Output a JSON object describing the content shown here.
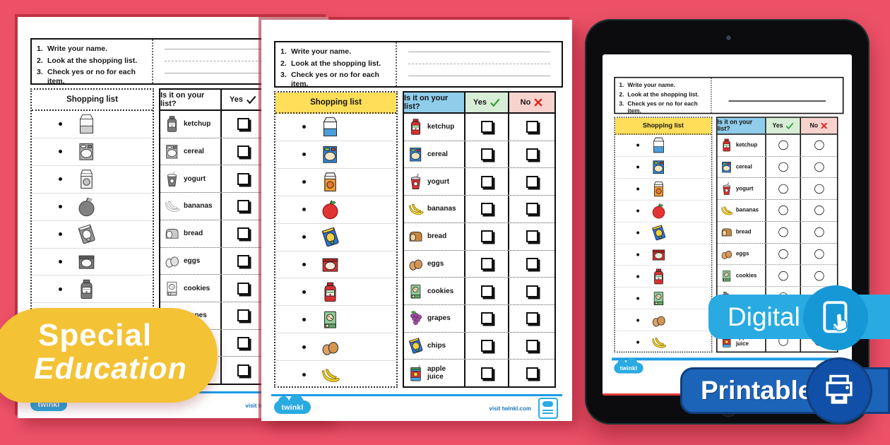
{
  "page_background": "#EC5168",
  "worksheet": {
    "instructions": [
      {
        "num": "1.",
        "text": "Write your name."
      },
      {
        "num": "2.",
        "text": "Look at the shopping list."
      },
      {
        "num": "3.",
        "text": "Check yes or no for each item."
      }
    ],
    "shopping_header": "Shopping list",
    "question_header": "Is it on your list?",
    "yes_label": "Yes",
    "no_label": "No",
    "shopping_items": [
      {
        "name": "milk",
        "icon": "milk-icon"
      },
      {
        "name": "cereal",
        "icon": "cereal-icon"
      },
      {
        "name": "orange juice",
        "icon": "orange-juice-icon"
      },
      {
        "name": "apple",
        "icon": "apple-icon"
      },
      {
        "name": "chips",
        "icon": "chips-icon"
      },
      {
        "name": "ice cream",
        "icon": "ice-cream-icon"
      },
      {
        "name": "ketchup",
        "icon": "ketchup-icon"
      },
      {
        "name": "cookies",
        "icon": "cookies-icon"
      },
      {
        "name": "eggs",
        "icon": "eggs-icon"
      },
      {
        "name": "bananas",
        "icon": "bananas-icon"
      }
    ],
    "checklist_items": [
      {
        "label": "ketchup",
        "icon": "ketchup-icon"
      },
      {
        "label": "cereal",
        "icon": "cereal-icon"
      },
      {
        "label": "yogurt",
        "icon": "yogurt-icon"
      },
      {
        "label": "bananas",
        "icon": "bananas-icon"
      },
      {
        "label": "bread",
        "icon": "bread-icon"
      },
      {
        "label": "eggs",
        "icon": "eggs-icon"
      },
      {
        "label": "cookies",
        "icon": "cookies-icon"
      },
      {
        "label": "grapes",
        "icon": "grapes-icon"
      },
      {
        "label": "chips",
        "icon": "chips-icon"
      },
      {
        "label": "apple juice",
        "icon": "apple-juice-icon"
      }
    ],
    "footer": {
      "brand": "twinkl",
      "visit_text": "visit twinkl.com"
    }
  },
  "badges": {
    "category": {
      "line1": "Special",
      "line2": "Education",
      "background": "#F4C235"
    },
    "digital": {
      "label": "Digital",
      "background": "#29ABE2",
      "icon": "tablet-touch-icon"
    },
    "printable": {
      "label": "Printable",
      "background": "#1C64B8",
      "icon": "printer-icon"
    }
  },
  "table_colors": {
    "shopping_header": "#FFDE59",
    "question_header": "#8FCDEB",
    "yes_header": "#D8EDD6",
    "no_header": "#F8D3CE",
    "check": "#2E9E30",
    "cross": "#E2251B",
    "footer_rule": "#1B9CE5"
  }
}
